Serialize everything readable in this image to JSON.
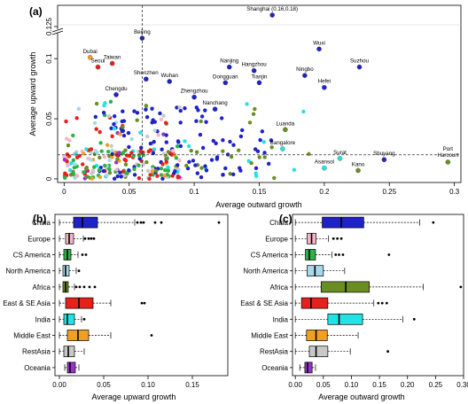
{
  "colors": {
    "China": "#1f22c8",
    "Europe": "#f4b6c6",
    "CS America": "#2db24a",
    "North America": "#a8d8ea",
    "Africa": "#6b8e23",
    "East & SE Asia": "#e8201c",
    "India": "#22e3e3",
    "Middle East": "#f0a020",
    "RestAsia": "#c8c8c8",
    "Oceania": "#9b30d0"
  },
  "chart_data": [
    {
      "panel_label": "(a)",
      "type": "scatter",
      "xlabel": "Average outward growth",
      "ylabel": "Average upward growth",
      "xlim": [
        -0.005,
        0.305
      ],
      "ylim": [
        -0.003,
        0.135
      ],
      "y_axis_break": true,
      "xticks": [
        "0",
        "0.05",
        "0.1",
        "0.15",
        "0.2",
        "0.25",
        "0.3"
      ],
      "yticks": [
        "0",
        "0.05",
        "0.1",
        "0.125"
      ],
      "reference_lines": {
        "vertical_x": 0.06,
        "horizontal_y": 0.02,
        "style": "dashed"
      },
      "labeled_points": [
        {
          "label": "Shanghai (0.16,0.18)",
          "region": "China",
          "x": 0.16,
          "y": 0.18
        },
        {
          "label": "Beijing",
          "region": "China",
          "x": 0.06,
          "y": 0.117
        },
        {
          "label": "Dubai",
          "region": "Middle East",
          "x": 0.02,
          "y": 0.101
        },
        {
          "label": "Taiwan",
          "region": "East & SE Asia",
          "x": 0.037,
          "y": 0.096
        },
        {
          "label": "Seoul",
          "region": "East & SE Asia",
          "x": 0.026,
          "y": 0.093
        },
        {
          "label": "Shenzhen",
          "region": "China",
          "x": 0.063,
          "y": 0.083
        },
        {
          "label": "Wuhan",
          "region": "China",
          "x": 0.081,
          "y": 0.081
        },
        {
          "label": "Chengdu",
          "region": "China",
          "x": 0.04,
          "y": 0.07
        },
        {
          "label": "Zhengzhou",
          "region": "China",
          "x": 0.1,
          "y": 0.068
        },
        {
          "label": "Nanjing",
          "region": "China",
          "x": 0.127,
          "y": 0.093
        },
        {
          "label": "Hangzhou",
          "region": "China",
          "x": 0.146,
          "y": 0.09
        },
        {
          "label": "Tianjin",
          "region": "China",
          "x": 0.15,
          "y": 0.08
        },
        {
          "label": "Dongguan",
          "region": "China",
          "x": 0.124,
          "y": 0.08
        },
        {
          "label": "Nanchang",
          "region": "China",
          "x": 0.116,
          "y": 0.058
        },
        {
          "label": "Wuxi",
          "region": "China",
          "x": 0.196,
          "y": 0.108
        },
        {
          "label": "Suzhou",
          "region": "China",
          "x": 0.227,
          "y": 0.093
        },
        {
          "label": "Ningbo",
          "region": "China",
          "x": 0.185,
          "y": 0.086
        },
        {
          "label": "Hefei",
          "region": "China",
          "x": 0.2,
          "y": 0.076
        },
        {
          "label": "Luanda",
          "region": "Africa",
          "x": 0.17,
          "y": 0.041
        },
        {
          "label": "Bangalore",
          "region": "India",
          "x": 0.168,
          "y": 0.025
        },
        {
          "label": "Surat",
          "region": "India",
          "x": 0.212,
          "y": 0.017
        },
        {
          "label": "Asansol",
          "region": "India",
          "x": 0.2,
          "y": 0.009
        },
        {
          "label": "Shuyang",
          "region": "China",
          "x": 0.246,
          "y": 0.016
        },
        {
          "label": "Kano",
          "region": "Africa",
          "x": 0.226,
          "y": 0.007
        },
        {
          "label": "Port Harcourt",
          "region": "Africa",
          "x": 0.295,
          "y": 0.014
        }
      ]
    },
    {
      "panel_label": "(b)",
      "type": "boxplot",
      "orientation": "horizontal",
      "xlabel": "Average upward growth",
      "xlim": [
        -0.005,
        0.19
      ],
      "xticks": [
        "0.00",
        "0.05",
        "0.10",
        "0.15"
      ],
      "categories": [
        "China",
        "Europe",
        "CS America",
        "North America",
        "Africa",
        "East & SE Asia",
        "India",
        "Middle East",
        "RestAsia",
        "Oceania"
      ],
      "boxes": [
        {
          "region": "China",
          "whislo": 0.0,
          "q1": 0.016,
          "median": 0.026,
          "q3": 0.043,
          "whishi": 0.085,
          "outliers": [
            0.088,
            0.092,
            0.095,
            0.108,
            0.115,
            0.18
          ]
        },
        {
          "region": "Europe",
          "whislo": 0.0,
          "q1": 0.007,
          "median": 0.011,
          "q3": 0.016,
          "whishi": 0.027,
          "outliers": [
            0.029,
            0.033,
            0.036,
            0.039
          ]
        },
        {
          "region": "CS America",
          "whislo": 0.0,
          "q1": 0.005,
          "median": 0.009,
          "q3": 0.013,
          "whishi": 0.021,
          "outliers": [
            0.026,
            0.03
          ]
        },
        {
          "region": "North America",
          "whislo": 0.0,
          "q1": 0.004,
          "median": 0.007,
          "q3": 0.011,
          "whishi": 0.019,
          "outliers": [
            0.022
          ]
        },
        {
          "region": "Africa",
          "whislo": 0.0,
          "q1": 0.004,
          "median": 0.007,
          "q3": 0.01,
          "whishi": 0.017,
          "outliers": [
            0.019,
            0.023,
            0.028,
            0.034,
            0.04
          ]
        },
        {
          "region": "East & SE Asia",
          "whislo": 0.0,
          "q1": 0.007,
          "median": 0.022,
          "q3": 0.038,
          "whishi": 0.058,
          "outliers": [
            0.093,
            0.096
          ]
        },
        {
          "region": "India",
          "whislo": 0.0,
          "q1": 0.005,
          "median": 0.009,
          "q3": 0.017,
          "whishi": 0.025,
          "outliers": [
            0.028
          ]
        },
        {
          "region": "Middle East",
          "whislo": 0.0,
          "q1": 0.009,
          "median": 0.021,
          "q3": 0.033,
          "whishi": 0.058,
          "outliers": [
            0.104
          ]
        },
        {
          "region": "RestAsia",
          "whislo": 0.0,
          "q1": 0.005,
          "median": 0.01,
          "q3": 0.017,
          "whishi": 0.028,
          "outliers": []
        },
        {
          "region": "Oceania",
          "whislo": 0.006,
          "q1": 0.009,
          "median": 0.012,
          "q3": 0.018,
          "whishi": 0.022,
          "outliers": []
        }
      ]
    },
    {
      "panel_label": "(c)",
      "type": "boxplot",
      "orientation": "horizontal",
      "xlabel": "Average outward growth",
      "xlim": [
        -0.005,
        0.3
      ],
      "xticks": [
        "0.00",
        "0.05",
        "0.10",
        "0.15",
        "0.20",
        "0.25",
        "0.30"
      ],
      "categories": [
        "China",
        "Europe",
        "CS America",
        "North America",
        "Africa",
        "East & SE Asia",
        "India",
        "Middle East",
        "RestAsia",
        "Oceania"
      ],
      "boxes": [
        {
          "region": "China",
          "whislo": 0.0,
          "q1": 0.048,
          "median": 0.082,
          "q3": 0.122,
          "whishi": 0.222,
          "outliers": [
            0.246
          ]
        },
        {
          "region": "Europe",
          "whislo": 0.0,
          "q1": 0.021,
          "median": 0.029,
          "q3": 0.037,
          "whishi": 0.059,
          "outliers": [
            0.068,
            0.075,
            0.082
          ]
        },
        {
          "region": "CS America",
          "whislo": 0.0,
          "q1": 0.018,
          "median": 0.025,
          "q3": 0.036,
          "whishi": 0.065,
          "outliers": [
            0.072,
            0.078,
            0.085,
            0.167
          ]
        },
        {
          "region": "North America",
          "whislo": 0.0,
          "q1": 0.021,
          "median": 0.035,
          "q3": 0.05,
          "whishi": 0.088,
          "outliers": []
        },
        {
          "region": "Africa",
          "whislo": 0.0,
          "q1": 0.046,
          "median": 0.09,
          "q3": 0.132,
          "whishi": 0.228,
          "outliers": [
            0.295
          ]
        },
        {
          "region": "East & SE Asia",
          "whislo": 0.0,
          "q1": 0.011,
          "median": 0.028,
          "q3": 0.058,
          "whishi": 0.14,
          "outliers": [
            0.148,
            0.155,
            0.163
          ]
        },
        {
          "region": "India",
          "whislo": 0.0,
          "q1": 0.058,
          "median": 0.078,
          "q3": 0.12,
          "whishi": 0.192,
          "outliers": [
            0.212
          ]
        },
        {
          "region": "Middle East",
          "whislo": 0.0,
          "q1": 0.02,
          "median": 0.037,
          "q3": 0.057,
          "whishi": 0.112,
          "outliers": []
        },
        {
          "region": "RestAsia",
          "whislo": 0.0,
          "q1": 0.025,
          "median": 0.037,
          "q3": 0.058,
          "whishi": 0.098,
          "outliers": [
            0.165
          ]
        },
        {
          "region": "Oceania",
          "whislo": 0.008,
          "q1": 0.017,
          "median": 0.022,
          "q3": 0.03,
          "whishi": 0.036,
          "outliers": []
        }
      ]
    }
  ]
}
